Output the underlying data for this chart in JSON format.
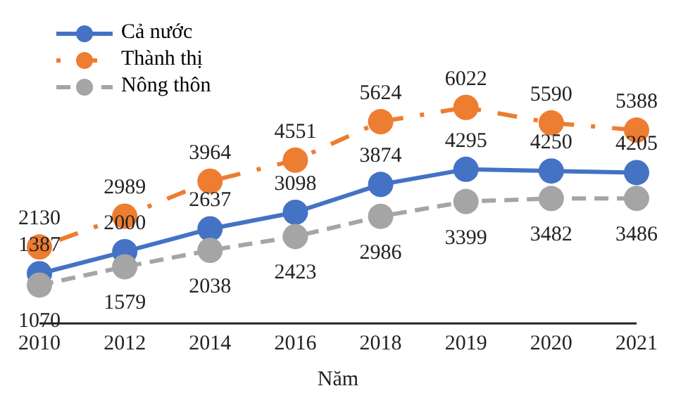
{
  "chart_data": {
    "type": "line",
    "xlabel": "Năm",
    "categories": [
      "2010",
      "2012",
      "2014",
      "2016",
      "2018",
      "2019",
      "2020",
      "2021"
    ],
    "series": [
      {
        "name": "Cả nước",
        "color": "#4472c4",
        "line_style": "solid",
        "values": [
          1387,
          2000,
          2637,
          3098,
          3874,
          4295,
          4250,
          4205
        ]
      },
      {
        "name": "Thành thị",
        "color": "#ed7d31",
        "line_style": "dotted",
        "values": [
          2130,
          2989,
          3964,
          4551,
          5624,
          6022,
          5590,
          5388
        ]
      },
      {
        "name": "Nông thôn",
        "color": "#a5a5a5",
        "line_style": "dashed",
        "values": [
          1070,
          1579,
          2038,
          2423,
          2986,
          3399,
          3482,
          3486
        ]
      }
    ],
    "data_labels": true,
    "marker": "circle",
    "legend": "top left",
    "grid": false,
    "tick_labels": "x"
  }
}
